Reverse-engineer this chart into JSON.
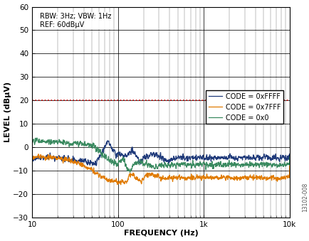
{
  "title": "",
  "xlabel": "FREQUENCY (Hz)",
  "ylabel": "LEVEL (dBμV)",
  "annotation": "RBW: 3Hz; VBW: 1Hz\nREF: 60dBμV",
  "watermark": "13102-008",
  "xlim": [
    10,
    10000
  ],
  "ylim": [
    -30,
    60
  ],
  "yticks": [
    -30,
    -20,
    -10,
    0,
    10,
    20,
    30,
    40,
    50,
    60
  ],
  "red_line_y": 20,
  "legend": [
    "CODE = 0xFFFF",
    "CODE = 0x7FFF",
    "CODE = 0x0"
  ],
  "colors": {
    "dark_blue": "#1f3a7a",
    "orange": "#e07b00",
    "teal": "#3a8a60",
    "red": "#cc0000"
  }
}
